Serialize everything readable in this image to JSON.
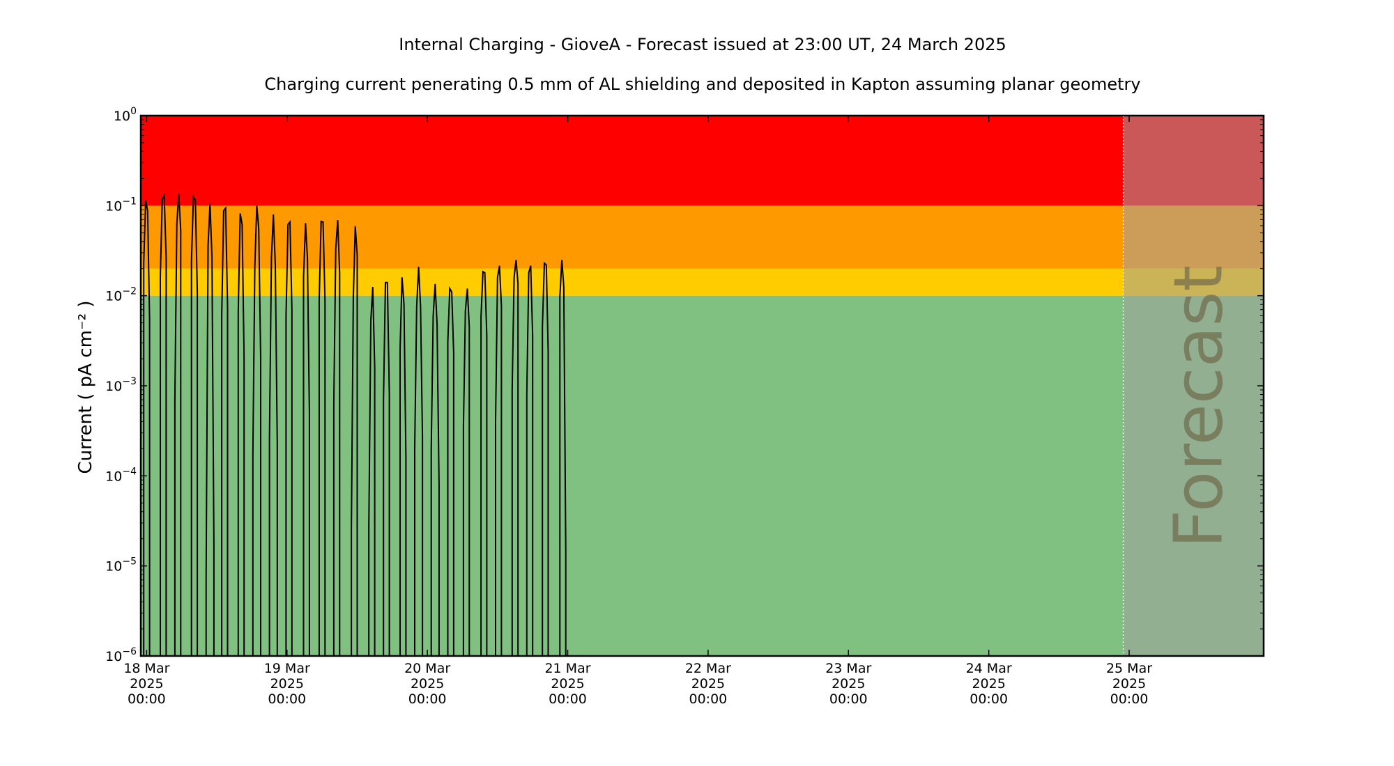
{
  "chart_data": {
    "type": "line",
    "title": "Internal Charging - GioveA - Forecast issued at 23:00 UT, 24 March 2025",
    "subtitle": "Charging current penerating 0.5 mm of AL shielding and deposited in Kapton assuming planar geometry",
    "xlabel": "",
    "ylabel": "Current ( pA cm⁻² )",
    "y_scale": "log",
    "ylim": [
      1e-06,
      1
    ],
    "xlim": [
      "2025-03-17T23:00",
      "2025-03-25T23:00"
    ],
    "grid": false,
    "legend": "none",
    "y_ticks": [
      {
        "value": 1e-06,
        "base": "10",
        "exp": "−6"
      },
      {
        "value": 1e-05,
        "base": "10",
        "exp": "−5"
      },
      {
        "value": 0.0001,
        "base": "10",
        "exp": "−4"
      },
      {
        "value": 0.001,
        "base": "10",
        "exp": "−3"
      },
      {
        "value": 0.01,
        "base": "10",
        "exp": "−2"
      },
      {
        "value": 0.1,
        "base": "10",
        "exp": "−1"
      },
      {
        "value": 1,
        "base": "10",
        "exp": "0"
      }
    ],
    "x_ticks": [
      {
        "value": "2025-03-18T00:00",
        "lines": [
          "18 Mar",
          "2025",
          "00:00"
        ]
      },
      {
        "value": "2025-03-19T00:00",
        "lines": [
          "19 Mar",
          "2025",
          "00:00"
        ]
      },
      {
        "value": "2025-03-20T00:00",
        "lines": [
          "20 Mar",
          "2025",
          "00:00"
        ]
      },
      {
        "value": "2025-03-21T00:00",
        "lines": [
          "21 Mar",
          "2025",
          "00:00"
        ]
      },
      {
        "value": "2025-03-22T00:00",
        "lines": [
          "22 Mar",
          "2025",
          "00:00"
        ]
      },
      {
        "value": "2025-03-23T00:00",
        "lines": [
          "23 Mar",
          "2025",
          "00:00"
        ]
      },
      {
        "value": "2025-03-24T00:00",
        "lines": [
          "24 Mar",
          "2025",
          "00:00"
        ]
      },
      {
        "value": "2025-03-25T00:00",
        "lines": [
          "25 Mar",
          "2025",
          "00:00"
        ]
      }
    ],
    "bands": [
      {
        "from": 1e-06,
        "to": 0.01,
        "color": "#80c080"
      },
      {
        "from": 0.01,
        "to": 0.02,
        "color": "#ffcc00"
      },
      {
        "from": 0.02,
        "to": 0.1,
        "color": "#ff9900"
      },
      {
        "from": 0.1,
        "to": 1,
        "color": "#ff0000"
      }
    ],
    "forecast": {
      "start": "2025-03-24T23:00",
      "label": "Forecast",
      "overlay_color": "#a0a0a0"
    },
    "series": [
      {
        "color": "#000000",
        "points": [
          [
            "2025-03-17T23:30",
            1e-06
          ],
          [
            "2025-03-17T23:30",
            0.023
          ],
          [
            "2025-03-17T23:50",
            0.115
          ],
          [
            "2025-03-18T00:10",
            0.088
          ],
          [
            "2025-03-18T00:30",
            0.0055
          ],
          [
            "2025-03-18T00:30",
            1e-06
          ],
          [
            "2025-03-18T02:20",
            1e-06
          ],
          [
            "2025-03-18T02:20",
            0.016
          ],
          [
            "2025-03-18T02:40",
            0.118
          ],
          [
            "2025-03-18T03:00",
            0.13
          ],
          [
            "2025-03-18T03:20",
            0.026
          ],
          [
            "2025-03-18T03:20",
            1e-06
          ],
          [
            "2025-03-18T04:50",
            1e-06
          ],
          [
            "2025-03-18T04:50",
            0.0007
          ],
          [
            "2025-03-18T05:10",
            0.063
          ],
          [
            "2025-03-18T05:30",
            0.135
          ],
          [
            "2025-03-18T05:50",
            0.053
          ],
          [
            "2025-03-18T05:50",
            1e-06
          ],
          [
            "2025-03-18T07:40",
            1e-06
          ],
          [
            "2025-03-18T07:40",
            0.024
          ],
          [
            "2025-03-18T08:00",
            0.125
          ],
          [
            "2025-03-18T08:20",
            0.115
          ],
          [
            "2025-03-18T08:40",
            0.011
          ],
          [
            "2025-03-18T08:40",
            1e-06
          ],
          [
            "2025-03-18T10:10",
            1e-06
          ],
          [
            "2025-03-18T10:10",
            8e-06
          ],
          [
            "2025-03-18T10:30",
            0.036
          ],
          [
            "2025-03-18T10:50",
            0.105
          ],
          [
            "2025-03-18T11:10",
            0.027
          ],
          [
            "2025-03-18T11:30",
            1.7e-05
          ],
          [
            "2025-03-18T11:30",
            1e-06
          ],
          [
            "2025-03-18T12:50",
            1e-06
          ],
          [
            "2025-03-18T12:50",
            0.0058
          ],
          [
            "2025-03-18T13:10",
            0.088
          ],
          [
            "2025-03-18T13:30",
            0.094
          ],
          [
            "2025-03-18T13:50",
            0.0075
          ],
          [
            "2025-03-18T13:50",
            1e-06
          ],
          [
            "2025-03-18T15:40",
            1e-06
          ],
          [
            "2025-03-18T15:40",
            0.0066
          ],
          [
            "2025-03-18T16:00",
            0.082
          ],
          [
            "2025-03-18T16:20",
            0.062
          ],
          [
            "2025-03-18T16:40",
            0.002
          ],
          [
            "2025-03-18T16:40",
            1e-06
          ],
          [
            "2025-03-18T18:10",
            1e-06
          ],
          [
            "2025-03-18T18:10",
            0.00017
          ],
          [
            "2025-03-18T18:30",
            0.021
          ],
          [
            "2025-03-18T18:50",
            0.1
          ],
          [
            "2025-03-18T19:10",
            0.056
          ],
          [
            "2025-03-18T19:30",
            0.002
          ],
          [
            "2025-03-18T19:30",
            1e-06
          ],
          [
            "2025-03-18T21:00",
            1e-06
          ],
          [
            "2025-03-18T21:00",
            0.00025
          ],
          [
            "2025-03-18T21:20",
            0.026
          ],
          [
            "2025-03-18T21:40",
            0.08
          ],
          [
            "2025-03-18T22:00",
            0.022
          ],
          [
            "2025-03-18T22:20",
            0.00023
          ],
          [
            "2025-03-18T22:20",
            1e-06
          ],
          [
            "2025-03-18T23:50",
            1e-06
          ],
          [
            "2025-03-18T23:50",
            0.006
          ],
          [
            "2025-03-19T00:10",
            0.062
          ],
          [
            "2025-03-19T00:30",
            0.066
          ],
          [
            "2025-03-19T00:50",
            0.0071
          ],
          [
            "2025-03-19T00:50",
            1e-06
          ],
          [
            "2025-03-19T02:50",
            1e-06
          ],
          [
            "2025-03-19T02:50",
            0.016
          ],
          [
            "2025-03-19T03:10",
            0.064
          ],
          [
            "2025-03-19T03:30",
            0.026
          ],
          [
            "2025-03-19T03:50",
            0.0005
          ],
          [
            "2025-03-19T03:50",
            1e-06
          ],
          [
            "2025-03-19T05:30",
            1e-06
          ],
          [
            "2025-03-19T05:30",
            0.0087
          ],
          [
            "2025-03-19T05:50",
            0.067
          ],
          [
            "2025-03-19T06:10",
            0.066
          ],
          [
            "2025-03-19T06:30",
            0.0088
          ],
          [
            "2025-03-19T06:30",
            1e-06
          ],
          [
            "2025-03-19T08:00",
            1e-06
          ],
          [
            "2025-03-19T08:00",
            0.0006
          ],
          [
            "2025-03-19T08:20",
            0.033
          ],
          [
            "2025-03-19T08:40",
            0.069
          ],
          [
            "2025-03-19T09:00",
            0.018
          ],
          [
            "2025-03-19T09:00",
            1e-06
          ],
          [
            "2025-03-19T11:00",
            1e-06
          ],
          [
            "2025-03-19T11:00",
            2.5e-05
          ],
          [
            "2025-03-19T11:20",
            0.0095
          ],
          [
            "2025-03-19T11:40",
            0.059
          ],
          [
            "2025-03-19T12:00",
            0.028
          ],
          [
            "2025-03-19T12:00",
            0.00035
          ],
          [
            "2025-03-19T12:00",
            1e-06
          ],
          [
            "2025-03-19T14:00",
            1e-06
          ],
          [
            "2025-03-19T14:00",
            2.8e-05
          ],
          [
            "2025-03-19T14:20",
            0.0052
          ],
          [
            "2025-03-19T14:40",
            0.0125
          ],
          [
            "2025-03-19T15:00",
            0.0016
          ],
          [
            "2025-03-19T15:00",
            1e-06
          ],
          [
            "2025-03-19T16:30",
            1e-06
          ],
          [
            "2025-03-19T16:30",
            0.0007
          ],
          [
            "2025-03-19T16:50",
            0.014
          ],
          [
            "2025-03-19T17:10",
            0.014
          ],
          [
            "2025-03-19T17:30",
            0.0008
          ],
          [
            "2025-03-19T17:30",
            1e-06
          ],
          [
            "2025-03-19T19:20",
            1e-06
          ],
          [
            "2025-03-19T19:20",
            0.0025
          ],
          [
            "2025-03-19T19:40",
            0.016
          ],
          [
            "2025-03-19T20:00",
            0.008
          ],
          [
            "2025-03-19T20:20",
            0.00016
          ],
          [
            "2025-03-19T20:20",
            1e-06
          ],
          [
            "2025-03-19T21:50",
            1e-06
          ],
          [
            "2025-03-19T21:50",
            0.0002
          ],
          [
            "2025-03-19T22:10",
            0.0075
          ],
          [
            "2025-03-19T22:30",
            0.021
          ],
          [
            "2025-03-19T22:50",
            0.0075
          ],
          [
            "2025-03-19T23:10",
            0.00027
          ],
          [
            "2025-03-19T23:10",
            1e-06
          ],
          [
            "2025-03-20T00:40",
            1e-06
          ],
          [
            "2025-03-20T00:40",
            0.0002
          ],
          [
            "2025-03-20T01:00",
            0.006
          ],
          [
            "2025-03-20T01:20",
            0.0135
          ],
          [
            "2025-03-20T01:40",
            0.0048
          ],
          [
            "2025-03-20T02:00",
            8e-05
          ],
          [
            "2025-03-20T02:00",
            1e-06
          ],
          [
            "2025-03-20T03:30",
            1e-06
          ],
          [
            "2025-03-20T03:30",
            0.0031
          ],
          [
            "2025-03-20T03:50",
            0.012
          ],
          [
            "2025-03-20T04:10",
            0.011
          ],
          [
            "2025-03-20T04:30",
            0.0023
          ],
          [
            "2025-03-20T04:30",
            1e-06
          ],
          [
            "2025-03-20T06:10",
            1e-06
          ],
          [
            "2025-03-20T06:10",
            0.00035
          ],
          [
            "2025-03-20T06:30",
            0.0068
          ],
          [
            "2025-03-20T06:50",
            0.012
          ],
          [
            "2025-03-20T07:10",
            0.0045
          ],
          [
            "2025-03-20T07:10",
            1e-06
          ],
          [
            "2025-03-20T09:10",
            1e-06
          ],
          [
            "2025-03-20T09:10",
            0.0057
          ],
          [
            "2025-03-20T09:30",
            0.0185
          ],
          [
            "2025-03-20T09:50",
            0.018
          ],
          [
            "2025-03-20T10:10",
            0.0036
          ],
          [
            "2025-03-20T10:10",
            1e-06
          ],
          [
            "2025-03-20T11:40",
            1e-06
          ],
          [
            "2025-03-20T11:40",
            0.0004
          ],
          [
            "2025-03-20T12:00",
            0.016
          ],
          [
            "2025-03-20T12:20",
            0.0215
          ],
          [
            "2025-03-20T12:40",
            0.0077
          ],
          [
            "2025-03-20T12:40",
            1e-06
          ],
          [
            "2025-03-20T14:30",
            1e-06
          ],
          [
            "2025-03-20T14:30",
            0.0009
          ],
          [
            "2025-03-20T14:50",
            0.016
          ],
          [
            "2025-03-20T15:10",
            0.025
          ],
          [
            "2025-03-20T15:30",
            0.0135
          ],
          [
            "2025-03-20T15:30",
            0.0003
          ],
          [
            "2025-03-20T15:30",
            1e-06
          ],
          [
            "2025-03-20T17:00",
            1e-06
          ],
          [
            "2025-03-20T17:00",
            0.0008
          ],
          [
            "2025-03-20T17:20",
            0.018
          ],
          [
            "2025-03-20T17:40",
            0.0215
          ],
          [
            "2025-03-20T18:00",
            0.0036
          ],
          [
            "2025-03-20T18:00",
            1e-06
          ],
          [
            "2025-03-20T19:40",
            1e-06
          ],
          [
            "2025-03-20T19:40",
            0.0045
          ],
          [
            "2025-03-20T20:00",
            0.023
          ],
          [
            "2025-03-20T20:20",
            0.022
          ],
          [
            "2025-03-20T20:40",
            0.0024
          ],
          [
            "2025-03-20T20:40",
            1e-06
          ],
          [
            "2025-03-20T22:40",
            1e-06
          ],
          [
            "2025-03-20T22:40",
            0.0099
          ],
          [
            "2025-03-20T23:00",
            0.025
          ],
          [
            "2025-03-20T23:20",
            0.0125
          ],
          [
            "2025-03-20T23:40",
            1.5e-05
          ],
          [
            "2025-03-20T23:40",
            1e-06
          ]
        ]
      }
    ]
  }
}
